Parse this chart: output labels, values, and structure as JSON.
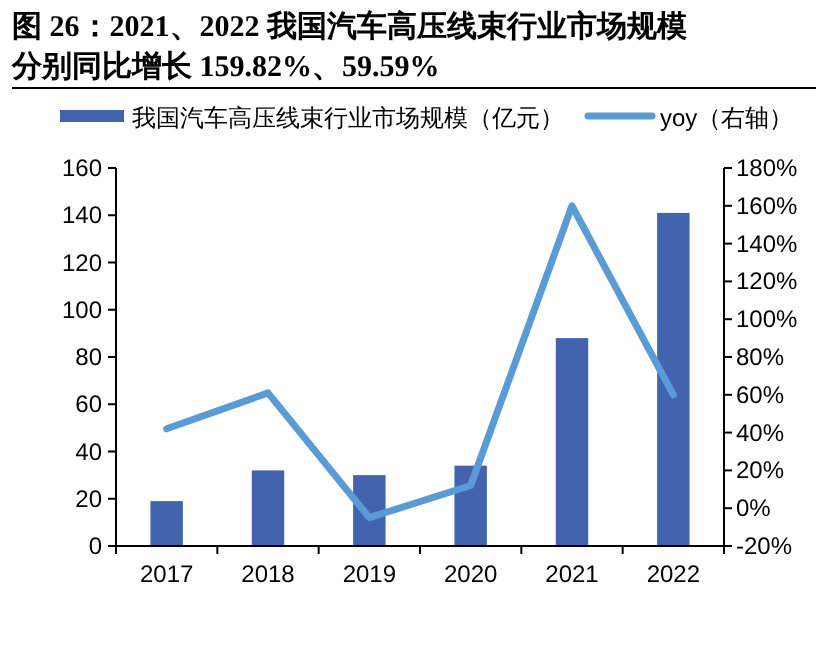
{
  "chart_data": {
    "type": "bar",
    "title": "图 26：2021、2022 我国汽车高压线束行业市场规模分别同比增长 159.82%、59.59%",
    "categories": [
      "2017",
      "2018",
      "2019",
      "2020",
      "2021",
      "2022"
    ],
    "series": [
      {
        "name": "我国汽车高压线束行业市场规模（亿元）",
        "color": "#4263ae",
        "values": [
          19,
          32,
          30,
          34,
          88,
          141
        ]
      },
      {
        "name": "yoy（右轴）",
        "type": "line",
        "axis": "y2",
        "color": "#5b9bd5",
        "values": [
          42,
          61,
          -5,
          12,
          160,
          60
        ]
      }
    ],
    "ylim": [
      0,
      160
    ],
    "yticks": [
      0,
      20,
      40,
      60,
      80,
      100,
      120,
      140,
      160
    ],
    "y2lim": [
      -20,
      180
    ],
    "y2ticks": [
      {
        "value": -20,
        "label": "-20%"
      },
      {
        "value": 0,
        "label": "0%"
      },
      {
        "value": 20,
        "label": "20%"
      },
      {
        "value": 40,
        "label": "40%"
      },
      {
        "value": 60,
        "label": "60%"
      },
      {
        "value": 80,
        "label": "80%"
      },
      {
        "value": 100,
        "label": "100%"
      },
      {
        "value": 120,
        "label": "120%"
      },
      {
        "value": 140,
        "label": "140%"
      },
      {
        "value": 160,
        "label": "160%"
      },
      {
        "value": 180,
        "label": "180%"
      }
    ],
    "legend": "top",
    "grid": false
  }
}
